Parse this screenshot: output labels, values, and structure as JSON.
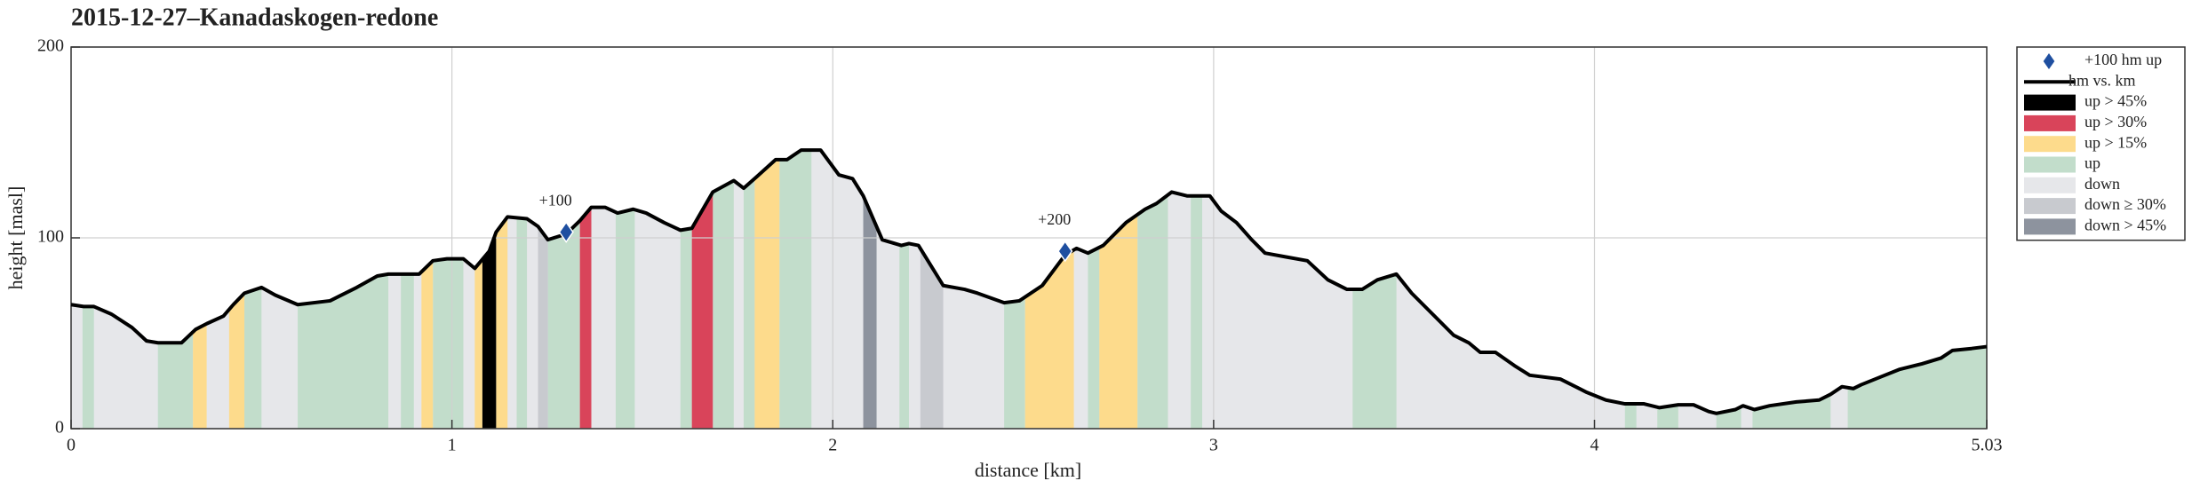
{
  "chart_data": {
    "type": "line",
    "title": "2015-12-27–Kanadaskogen-redone",
    "xlabel": "distance [km]",
    "ylabel": "height [masl]",
    "xlim": [
      0,
      5.03
    ],
    "ylim": [
      0,
      200
    ],
    "xticks": [
      0,
      1,
      2,
      3,
      4,
      5.03
    ],
    "yticks": [
      0,
      100,
      200
    ],
    "grid": true,
    "legend": "outside-right",
    "series": [
      {
        "name": "hm vs. km",
        "color": "#000000",
        "x": [
          0,
          0.033,
          0.06,
          0.106,
          0.16,
          0.198,
          0.228,
          0.29,
          0.327,
          0.356,
          0.4,
          0.426,
          0.455,
          0.5,
          0.536,
          0.595,
          0.68,
          0.75,
          0.804,
          0.833,
          0.914,
          0.95,
          0.987,
          1.03,
          1.06,
          1.098,
          1.116,
          1.146,
          1.197,
          1.226,
          1.252,
          1.3,
          1.336,
          1.366,
          1.402,
          1.435,
          1.476,
          1.51,
          1.557,
          1.6,
          1.63,
          1.685,
          1.74,
          1.766,
          1.8,
          1.85,
          1.88,
          1.917,
          1.968,
          2.016,
          2.052,
          2.08,
          2.13,
          2.18,
          2.2,
          2.225,
          2.29,
          2.346,
          2.38,
          2.45,
          2.49,
          2.55,
          2.61,
          2.64,
          2.67,
          2.71,
          2.77,
          2.82,
          2.85,
          2.89,
          2.93,
          2.99,
          3.02,
          3.06,
          3.1,
          3.135,
          3.19,
          3.246,
          3.3,
          3.35,
          3.39,
          3.43,
          3.48,
          3.52,
          3.58,
          3.63,
          3.67,
          3.7,
          3.74,
          3.79,
          3.83,
          3.91,
          3.98,
          4.03,
          4.08,
          4.13,
          4.17,
          4.22,
          4.26,
          4.3,
          4.32,
          4.37,
          4.39,
          4.42,
          4.46,
          4.53,
          4.59,
          4.62,
          4.65,
          4.68,
          4.7,
          4.75,
          4.8,
          4.86,
          4.91,
          4.94,
          4.99,
          5.03
        ],
        "values": [
          65,
          64,
          64,
          60,
          53,
          46,
          45,
          45,
          52,
          55,
          59,
          65,
          71,
          74,
          70,
          65,
          67,
          74,
          80,
          81,
          81,
          88,
          89,
          89,
          84,
          93,
          103,
          111,
          110,
          106,
          99,
          102,
          109,
          116,
          116,
          113,
          115,
          113,
          108,
          104,
          105,
          124,
          130,
          126,
          132,
          141,
          141,
          146,
          146,
          133,
          131,
          122,
          99,
          96,
          97,
          96,
          75,
          73,
          71,
          66,
          67,
          75,
          91,
          94.5,
          92,
          96,
          108,
          115,
          118,
          124,
          122,
          122,
          114,
          108,
          99,
          92,
          90,
          88,
          78,
          73,
          73,
          78,
          81,
          71,
          59,
          49,
          45,
          40,
          40,
          33,
          28,
          26,
          19,
          15,
          13,
          13,
          11,
          12.5,
          12.5,
          9,
          8,
          10,
          12,
          10,
          12,
          14,
          15,
          18,
          22,
          21,
          23,
          27,
          31,
          34,
          37,
          41,
          42,
          43
        ]
      }
    ],
    "markers": {
      "name": "+100 hm up",
      "color": "#1f4fa0",
      "x": [
        1.3,
        2.61
      ],
      "values": [
        103,
        93
      ],
      "labels": [
        "+100",
        "+200"
      ]
    },
    "bands": [
      {
        "name": "up > 45%",
        "color": "#000000",
        "ranges": [
          [
            1.08,
            1.116
          ]
        ]
      },
      {
        "name": "up > 30%",
        "color": "#d9445a",
        "ranges": [
          [
            1.336,
            1.366
          ],
          [
            1.63,
            1.685
          ]
        ]
      },
      {
        "name": "up > 15%",
        "color": "#fddb8c",
        "ranges": [
          [
            0.32,
            0.356
          ],
          [
            0.415,
            0.455
          ],
          [
            0.92,
            0.95
          ],
          [
            1.06,
            1.08
          ],
          [
            1.116,
            1.146
          ],
          [
            1.795,
            1.86
          ],
          [
            2.505,
            2.633
          ],
          [
            2.7,
            2.8
          ]
        ]
      },
      {
        "name": "up",
        "color": "#c2ddcb",
        "ranges": [
          [
            0.03,
            0.06
          ],
          [
            0.228,
            0.32
          ],
          [
            0.455,
            0.5
          ],
          [
            0.595,
            0.833
          ],
          [
            0.866,
            0.9
          ],
          [
            0.95,
            1.03
          ],
          [
            1.17,
            1.197
          ],
          [
            1.252,
            1.336
          ],
          [
            1.43,
            1.48
          ],
          [
            1.6,
            1.63
          ],
          [
            1.685,
            1.74
          ],
          [
            1.766,
            1.795
          ],
          [
            1.86,
            1.944
          ],
          [
            2.175,
            2.2
          ],
          [
            2.45,
            2.505
          ],
          [
            2.67,
            2.7
          ],
          [
            2.8,
            2.88
          ],
          [
            2.94,
            2.97
          ],
          [
            3.365,
            3.48
          ],
          [
            4.08,
            4.11
          ],
          [
            4.165,
            4.22
          ],
          [
            4.32,
            4.385
          ],
          [
            4.415,
            4.62
          ],
          [
            4.665,
            5.03
          ]
        ]
      },
      {
        "name": "down",
        "color": "#e6e7ea",
        "ranges": [
          [
            0,
            5.03
          ]
        ]
      },
      {
        "name": "down ≥ 30%",
        "color": "#c8cacf",
        "ranges": [
          [
            1.226,
            1.252
          ],
          [
            2.23,
            2.29
          ]
        ]
      },
      {
        "name": "down > 45%",
        "color": "#8d939e",
        "ranges": [
          [
            2.08,
            2.115
          ]
        ]
      }
    ]
  }
}
